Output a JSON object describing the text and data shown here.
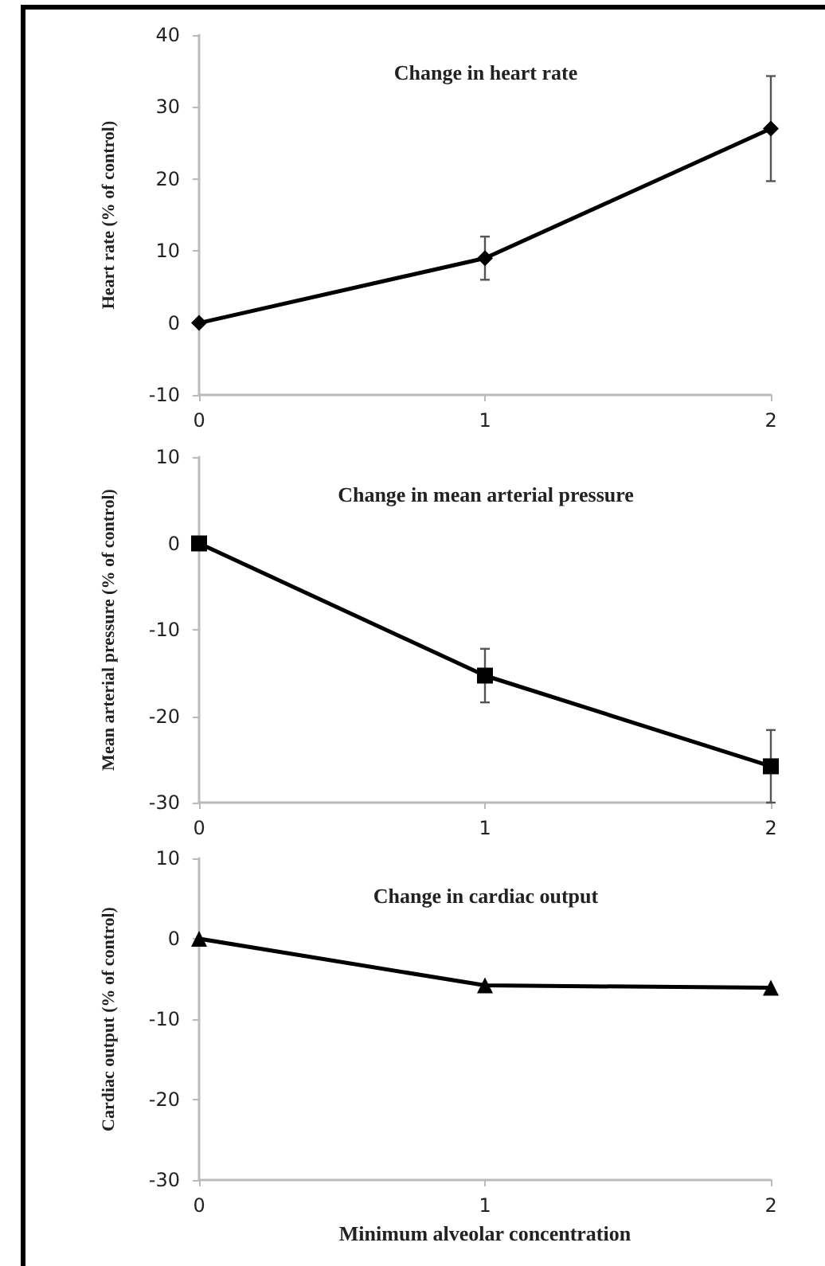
{
  "chart_data": [
    {
      "type": "line",
      "title": "Change in heart rate",
      "ylabel": "Heart rate (% of control)",
      "categories": [
        "0",
        "1",
        "2"
      ],
      "marker": "diamond",
      "ylim": [
        -10,
        40
      ],
      "yticks": [
        -10,
        0,
        10,
        20,
        30,
        40
      ],
      "grid": false,
      "series": [
        {
          "color": "#000000",
          "values": [
            0,
            9,
            27
          ],
          "errors": [
            null,
            3,
            7.3
          ]
        }
      ]
    },
    {
      "type": "line",
      "title": "Change in mean arterial pressure",
      "ylabel": "Mean arterial pressure (% of control)",
      "categories": [
        "0",
        "1",
        "2"
      ],
      "marker": "square",
      "ylim": [
        -30,
        10
      ],
      "yticks": [
        -30,
        -20,
        -10,
        0,
        10
      ],
      "grid": false,
      "series": [
        {
          "color": "#000000",
          "values": [
            0,
            -15.3,
            -25.8
          ],
          "errors": [
            null,
            3.1,
            [
              4.2,
              4.2
            ]
          ]
        }
      ]
    },
    {
      "type": "line",
      "title": "Change in cardiac output",
      "ylabel": "Cardiac output (% of control)",
      "xlabel": "Minimum alveolar concentration",
      "categories": [
        "0",
        "1",
        "2"
      ],
      "marker": "triangle",
      "ylim": [
        -30,
        10
      ],
      "yticks": [
        -30,
        -20,
        -10,
        0,
        10
      ],
      "grid": false,
      "series": [
        {
          "color": "#000000",
          "values": [
            0,
            -5.8,
            -6.1
          ]
        }
      ]
    }
  ]
}
